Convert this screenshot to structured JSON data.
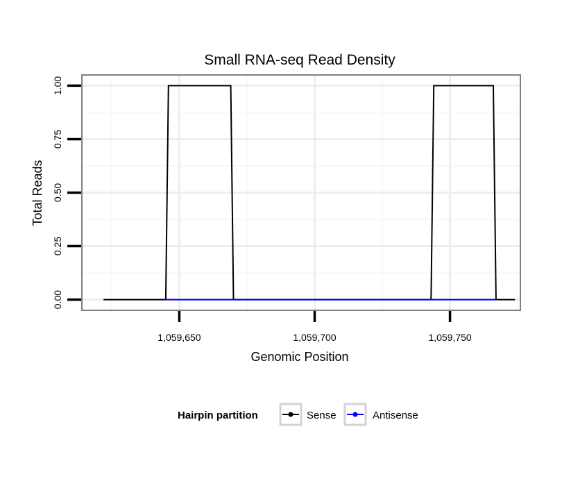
{
  "chart_data": {
    "type": "line",
    "title": "Small RNA-seq Read Density",
    "xlabel": "Genomic Position",
    "ylabel": "Total Reads",
    "xlim": [
      1059614,
      1059776
    ],
    "ylim": [
      -0.05,
      1.05
    ],
    "x_ticks": [
      1059650,
      1059700,
      1059750
    ],
    "x_tick_labels": [
      "1,059,650",
      "1,059,700",
      "1,059,750"
    ],
    "y_ticks": [
      0,
      0.25,
      0.5,
      0.75,
      1.0
    ],
    "y_tick_labels": [
      "0.00",
      "0.25",
      "0.50",
      "0.75",
      "1.00"
    ],
    "grid": true,
    "legend": {
      "title": "Hairpin partition",
      "position": "bottom"
    },
    "series": [
      {
        "name": "Sense",
        "color": "#000000",
        "points": [
          [
            1059622,
            0
          ],
          [
            1059645,
            0
          ],
          [
            1059646,
            1
          ],
          [
            1059669,
            1
          ],
          [
            1059670,
            0
          ],
          [
            1059743,
            0
          ],
          [
            1059744,
            1
          ],
          [
            1059766,
            1
          ],
          [
            1059767,
            0
          ],
          [
            1059774,
            0
          ]
        ]
      },
      {
        "name": "Antisense",
        "color": "#0000ff",
        "points": [
          [
            1059645,
            0
          ],
          [
            1059670,
            0
          ],
          [
            1059743,
            0
          ],
          [
            1059767,
            0
          ]
        ]
      }
    ]
  }
}
